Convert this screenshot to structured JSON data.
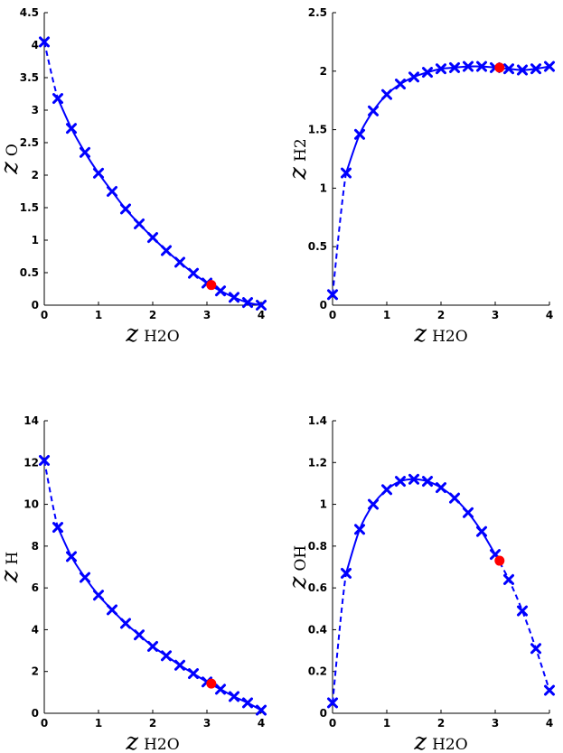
{
  "colors": {
    "series": "#0000ff",
    "highlight": "#ff0000",
    "axis": "#000000",
    "background": "#ffffff"
  },
  "chart_data": [
    {
      "type": "line",
      "xlabel_main": "z",
      "xlabel_sub": "H2O",
      "ylabel_main": "z",
      "ylabel_sub": "O",
      "xlim": [
        0,
        4
      ],
      "ylim": [
        0,
        4.5
      ],
      "xticks": [
        0,
        1,
        2,
        3,
        4
      ],
      "yticks": [
        0,
        0.5,
        1,
        1.5,
        2,
        2.5,
        3,
        3.5,
        4,
        4.5
      ],
      "xtick_labels": [
        "0",
        "1",
        "2",
        "3",
        "4"
      ],
      "ytick_labels": [
        "0",
        "0.5",
        "1",
        "1.5",
        "2",
        "2.5",
        "3",
        "3.5",
        "4",
        "4.5"
      ],
      "grid": false,
      "series": [
        {
          "marker": "x",
          "x": [
            0,
            0.25,
            0.5,
            0.75,
            1,
            1.25,
            1.5,
            1.75,
            2,
            2.25,
            2.5,
            2.75,
            3,
            3.25,
            3.5,
            3.75,
            4
          ],
          "values": [
            4.05,
            3.18,
            2.72,
            2.35,
            2.03,
            1.75,
            1.48,
            1.25,
            1.04,
            0.84,
            0.66,
            0.49,
            0.34,
            0.22,
            0.12,
            0.04,
            0.0
          ]
        }
      ],
      "highlight": {
        "x": 3.08,
        "y": 0.31
      }
    },
    {
      "type": "line",
      "xlabel_main": "z",
      "xlabel_sub": "H2O",
      "ylabel_main": "z",
      "ylabel_sub": "H2",
      "xlim": [
        0,
        4
      ],
      "ylim": [
        0,
        2.5
      ],
      "xticks": [
        0,
        1,
        2,
        3,
        4
      ],
      "yticks": [
        0,
        0.5,
        1,
        1.5,
        2,
        2.5
      ],
      "xtick_labels": [
        "0",
        "1",
        "2",
        "3",
        "4"
      ],
      "ytick_labels": [
        "0",
        "0.5",
        "1",
        "1.5",
        "2",
        "2.5"
      ],
      "grid": false,
      "series": [
        {
          "marker": "x",
          "x": [
            0,
            0.25,
            0.5,
            0.75,
            1,
            1.25,
            1.5,
            1.75,
            2,
            2.25,
            2.5,
            2.75,
            3,
            3.25,
            3.5,
            3.75,
            4
          ],
          "values": [
            0.09,
            1.13,
            1.46,
            1.66,
            1.8,
            1.89,
            1.95,
            1.99,
            2.02,
            2.03,
            2.04,
            2.04,
            2.03,
            2.02,
            2.01,
            2.02,
            2.04
          ]
        }
      ],
      "highlight": {
        "x": 3.08,
        "y": 2.03
      }
    },
    {
      "type": "line",
      "xlabel_main": "z",
      "xlabel_sub": "H2O",
      "ylabel_main": "z",
      "ylabel_sub": "H",
      "xlim": [
        0,
        4
      ],
      "ylim": [
        0,
        14
      ],
      "xticks": [
        0,
        1,
        2,
        3,
        4
      ],
      "yticks": [
        0,
        2,
        4,
        6,
        8,
        10,
        12,
        14
      ],
      "xtick_labels": [
        "0",
        "1",
        "2",
        "3",
        "4"
      ],
      "ytick_labels": [
        "0",
        "2",
        "4",
        "6",
        "8",
        "10",
        "12",
        "14"
      ],
      "grid": false,
      "series": [
        {
          "marker": "x",
          "x": [
            0,
            0.25,
            0.5,
            0.75,
            1,
            1.25,
            1.5,
            1.75,
            2,
            2.25,
            2.5,
            2.75,
            3,
            3.25,
            3.5,
            3.75,
            4
          ],
          "values": [
            12.1,
            8.9,
            7.5,
            6.5,
            5.65,
            4.95,
            4.3,
            3.75,
            3.2,
            2.75,
            2.3,
            1.9,
            1.5,
            1.15,
            0.8,
            0.5,
            0.15
          ]
        }
      ],
      "highlight": {
        "x": 3.08,
        "y": 1.42
      }
    },
    {
      "type": "line",
      "xlabel_main": "z",
      "xlabel_sub": "H2O",
      "ylabel_main": "z",
      "ylabel_sub": "OH",
      "xlim": [
        0,
        4
      ],
      "ylim": [
        0,
        1.4
      ],
      "xticks": [
        0,
        1,
        2,
        3,
        4
      ],
      "yticks": [
        0,
        0.2,
        0.4,
        0.6,
        0.8,
        1,
        1.2,
        1.4
      ],
      "xtick_labels": [
        "0",
        "1",
        "2",
        "3",
        "4"
      ],
      "ytick_labels": [
        "0",
        "0.2",
        "0.4",
        "0.6",
        "0.8",
        "1",
        "1.2",
        "1.4"
      ],
      "grid": false,
      "series": [
        {
          "marker": "x",
          "x": [
            0,
            0.25,
            0.5,
            0.75,
            1,
            1.25,
            1.5,
            1.75,
            2,
            2.25,
            2.5,
            2.75,
            3,
            3.25,
            3.5,
            3.75,
            4
          ],
          "values": [
            0.05,
            0.67,
            0.88,
            1.0,
            1.07,
            1.11,
            1.12,
            1.11,
            1.08,
            1.03,
            0.96,
            0.87,
            0.76,
            0.64,
            0.49,
            0.31,
            0.11
          ]
        }
      ],
      "highlight": {
        "x": 3.08,
        "y": 0.73
      }
    }
  ]
}
